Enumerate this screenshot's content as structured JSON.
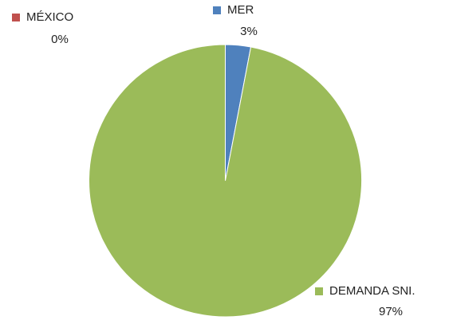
{
  "chart_data": {
    "type": "pie",
    "categories": [
      "MER",
      "MÉXICO",
      "DEMANDA SNI."
    ],
    "values": [
      3,
      0,
      97
    ],
    "value_labels": [
      "3%",
      "0%",
      "97%"
    ],
    "colors": [
      "#4f81bd",
      "#c0504d",
      "#9bbb59"
    ],
    "start_angle": 0,
    "direction": "clockwise"
  }
}
